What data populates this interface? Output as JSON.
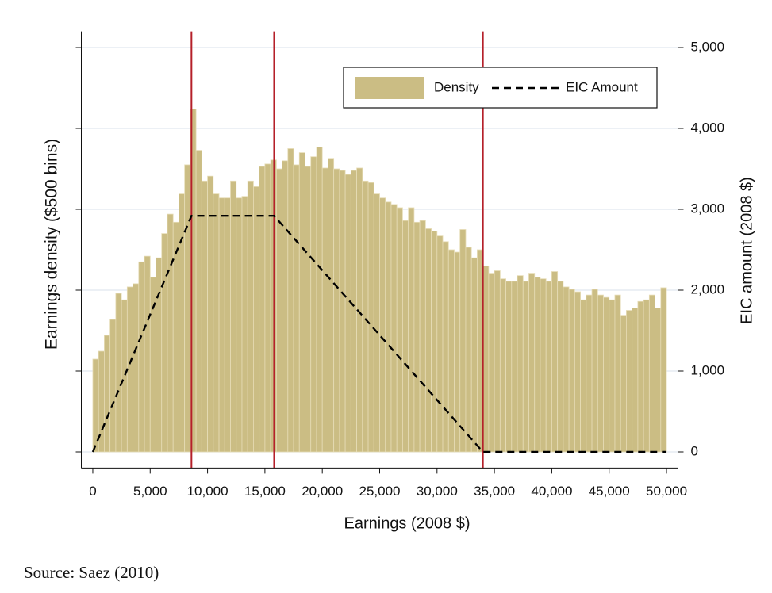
{
  "chart_data": {
    "type": "histogram",
    "xlabel": "Earnings (2008 $)",
    "ylabel": "Earnings density ($500 bins)",
    "y2label": "EIC amount (2008 $)",
    "xlim": [
      -1000,
      51000
    ],
    "ylim": [
      -200,
      5200
    ],
    "y2lim": [
      -200,
      5200
    ],
    "xticks": [
      0,
      {
        "value": 5000,
        "label": "5,000"
      },
      {
        "value": 10000,
        "label": "10,000"
      },
      {
        "value": 15000,
        "label": "15,000"
      },
      {
        "value": 20000,
        "label": "20,000"
      },
      {
        "value": 25000,
        "label": "25,000"
      },
      {
        "value": 30000,
        "label": "30,000"
      },
      {
        "value": 35000,
        "label": "35,000"
      },
      {
        "value": 40000,
        "label": "40,000"
      },
      {
        "value": 45000,
        "label": "45,000"
      },
      {
        "value": 50000,
        "label": "50,000"
      }
    ],
    "y2ticks": [
      0,
      {
        "value": 1000,
        "label": "1,000"
      },
      {
        "value": 2000,
        "label": "2,000"
      },
      {
        "value": 3000,
        "label": "3,000"
      },
      {
        "value": 4000,
        "label": "4,000"
      },
      {
        "value": 5000,
        "label": "5,000"
      }
    ],
    "grid": true,
    "legend": "top-right",
    "bins": [
      0,
      500,
      1000,
      1500,
      2000,
      2500,
      3000,
      3500,
      4000,
      4500,
      5000,
      5500,
      6000,
      6500,
      7000,
      7500,
      8000,
      8500,
      9000,
      9500,
      10000,
      10500,
      11000,
      11500,
      12000,
      12500,
      13000,
      13500,
      14000,
      14500,
      15000,
      15500,
      16000,
      16500,
      17000,
      17500,
      18000,
      18500,
      19000,
      19500,
      20000,
      20500,
      21000,
      21500,
      22000,
      22500,
      23000,
      23500,
      24000,
      24500,
      25000,
      25500,
      26000,
      26500,
      27000,
      27500,
      28000,
      28500,
      29000,
      29500,
      30000,
      30500,
      31000,
      31500,
      32000,
      32500,
      33000,
      33500,
      34000,
      34500,
      35000,
      35500,
      36000,
      36500,
      37000,
      37500,
      38000,
      38500,
      39000,
      39500,
      40000,
      40500,
      41000,
      41500,
      42000,
      42500,
      43000,
      43500,
      44000,
      44500,
      45000,
      45500,
      46000,
      46500,
      47000,
      47500,
      48000,
      48500,
      49000,
      49500,
      50000
    ],
    "series": [
      {
        "name": "Density",
        "color": "#cbbd84",
        "axis": "y",
        "values": [
          1147,
          1245,
          1441,
          1637,
          1960,
          1880,
          2040,
          2080,
          2350,
          2420,
          2160,
          2400,
          2700,
          2940,
          2840,
          3190,
          3550,
          4240,
          3730,
          3350,
          3410,
          3190,
          3140,
          3140,
          3350,
          3140,
          3160,
          3350,
          3280,
          3530,
          3560,
          3610,
          3500,
          3600,
          3750,
          3550,
          3700,
          3530,
          3650,
          3770,
          3510,
          3630,
          3500,
          3480,
          3430,
          3480,
          3510,
          3350,
          3330,
          3190,
          3140,
          3090,
          3060,
          3020,
          2860,
          3020,
          2840,
          2860,
          2760,
          2730,
          2670,
          2600,
          2500,
          2470,
          2750,
          2530,
          2400,
          2500,
          2300,
          2210,
          2240,
          2140,
          2110,
          2110,
          2180,
          2110,
          2210,
          2160,
          2140,
          2110,
          2230,
          2110,
          2040,
          2010,
          1980,
          1880,
          1940,
          2010,
          1940,
          1910,
          1880,
          1940,
          1690,
          1750,
          1780,
          1860,
          1880,
          1940,
          1780,
          2030
        ]
      },
      {
        "name": "EIC Amount",
        "color": "#000000",
        "axis": "y2",
        "type": "line",
        "x": [
          0,
          8600,
          15800,
          34000,
          50000
        ],
        "values": [
          0,
          2920,
          2920,
          0,
          0
        ]
      }
    ],
    "vlines": {
      "color": "#b5202a",
      "x": [
        8600,
        15800,
        34000
      ]
    }
  },
  "source": "Source: Saez (2010)"
}
